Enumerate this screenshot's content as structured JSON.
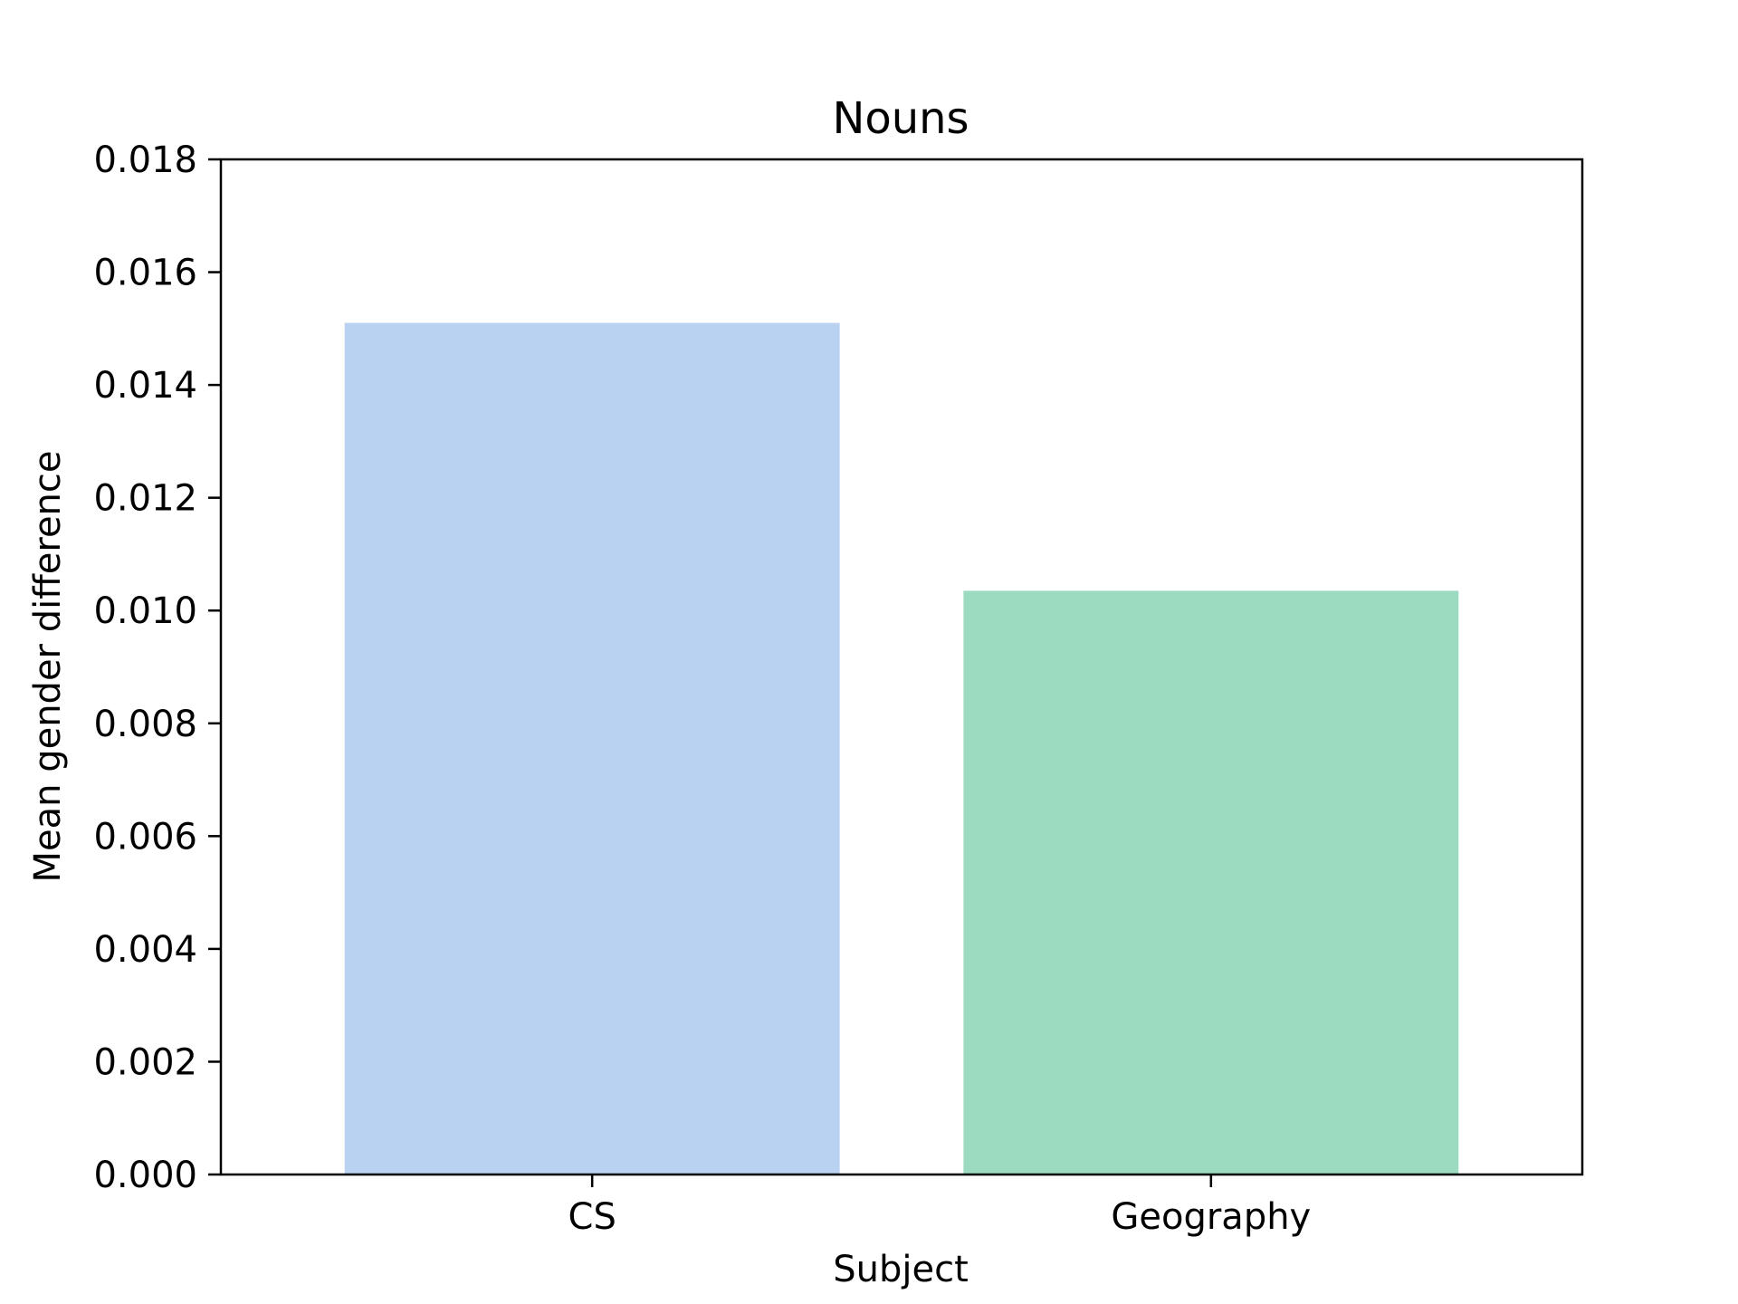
{
  "chart_data": {
    "type": "bar",
    "title": "Nouns",
    "xlabel": "Subject",
    "ylabel": "Mean gender difference",
    "categories": [
      "CS",
      "Geography"
    ],
    "values": [
      0.0151,
      0.01035
    ],
    "colors": [
      "#bad2f2",
      "#9cdbc0"
    ],
    "ylim": [
      0,
      0.018
    ],
    "yticks": [
      "0.000",
      "0.002",
      "0.004",
      "0.006",
      "0.008",
      "0.010",
      "0.012",
      "0.014",
      "0.016",
      "0.018"
    ],
    "grid": false,
    "legend": "none"
  }
}
